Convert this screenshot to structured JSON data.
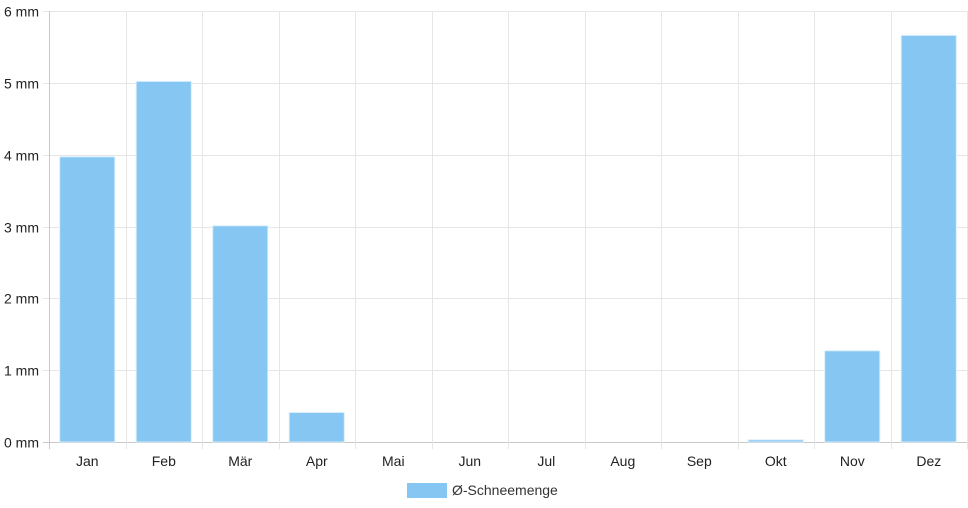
{
  "chart_data": {
    "type": "bar",
    "categories": [
      "Jan",
      "Feb",
      "Mär",
      "Apr",
      "Mai",
      "Jun",
      "Jul",
      "Aug",
      "Sep",
      "Okt",
      "Nov",
      "Dez"
    ],
    "series": [
      {
        "name": "Ø-Schneemenge",
        "values": [
          3.97,
          5.02,
          3.01,
          0.41,
          0,
          0,
          0,
          0,
          0,
          0.03,
          1.27,
          5.66
        ]
      }
    ],
    "y_ticks": [
      "0 mm",
      "1 mm",
      "2 mm",
      "3 mm",
      "4 mm",
      "5 mm",
      "6 mm"
    ],
    "ylim": [
      0,
      6
    ],
    "unit": "mm",
    "grid": true,
    "legend_position": "bottom-center",
    "colors": {
      "bar_fill": "#85c6f2",
      "bar_stroke": "#d9eefc",
      "grid": "#e6e6e6",
      "axis": "#c8c8c8"
    }
  }
}
